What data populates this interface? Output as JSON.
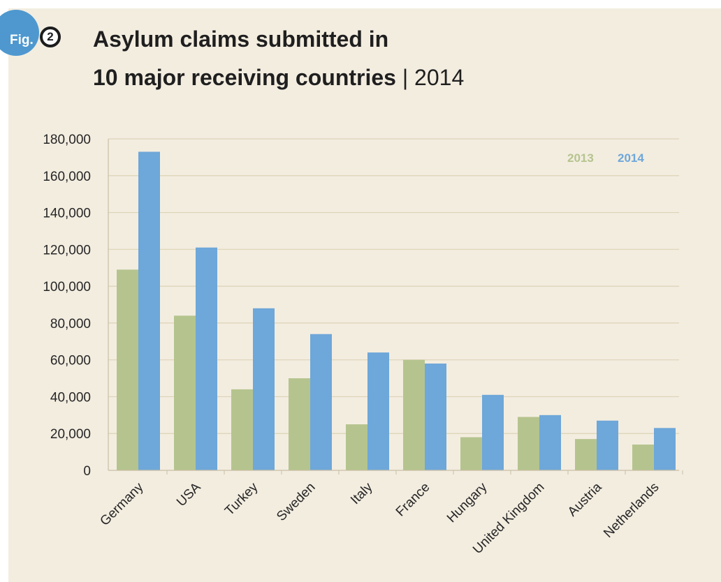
{
  "figure": {
    "badge_label": "Fig.",
    "number": "2"
  },
  "title": {
    "line1": "Asylum claims submitted in",
    "line2": "10 major receiving countries",
    "separator": "|",
    "year": "2014"
  },
  "colors": {
    "panel_background": "#f3ede0",
    "series_2013": "#b5c48e",
    "series_2014": "#6ea7d9",
    "badge": "#4e98cf",
    "gridline": "#ddd2b6"
  },
  "chart_data": {
    "type": "bar",
    "title": "Asylum claims submitted in 10 major receiving countries | 2014",
    "xlabel": "",
    "ylabel": "",
    "categories": [
      "Germany",
      "USA",
      "Turkey",
      "Sweden",
      "Italy",
      "France",
      "Hungary",
      "United Kingdom",
      "Austria",
      "Netherlands"
    ],
    "series": [
      {
        "name": "2013",
        "color": "#b5c48e",
        "values": [
          109000,
          84000,
          44000,
          50000,
          25000,
          60000,
          18000,
          29000,
          17000,
          14000
        ]
      },
      {
        "name": "2014",
        "color": "#6ea7d9",
        "values": [
          173000,
          121000,
          88000,
          74000,
          64000,
          58000,
          41000,
          30000,
          27000,
          23000
        ]
      }
    ],
    "ylim": [
      0,
      180000
    ],
    "yticks": [
      0,
      20000,
      40000,
      60000,
      80000,
      100000,
      120000,
      140000,
      160000,
      180000
    ],
    "ytick_labels": [
      "0",
      "20,000",
      "40,000",
      "60,000",
      "80,000",
      "100,000",
      "120,000",
      "140,000",
      "160,000",
      "180,000"
    ],
    "grid": true,
    "legend": "top-right",
    "x_tick_rotation": "-45"
  }
}
